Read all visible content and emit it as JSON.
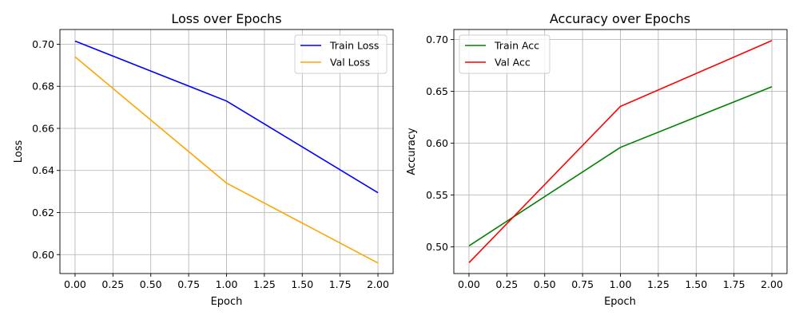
{
  "chart_data": [
    {
      "type": "line",
      "title": "Loss over Epochs",
      "xlabel": "Epoch",
      "ylabel": "Loss",
      "xlim": [
        -0.1,
        2.1
      ],
      "ylim": [
        0.591,
        0.707
      ],
      "xticks": [
        0.0,
        0.25,
        0.5,
        0.75,
        1.0,
        1.25,
        1.5,
        1.75,
        2.0
      ],
      "xtick_labels": [
        "0.00",
        "0.25",
        "0.50",
        "0.75",
        "1.00",
        "1.25",
        "1.50",
        "1.75",
        "2.00"
      ],
      "yticks": [
        0.6,
        0.62,
        0.64,
        0.66,
        0.68,
        0.7
      ],
      "ytick_labels": [
        "0.60",
        "0.62",
        "0.64",
        "0.66",
        "0.68",
        "0.70"
      ],
      "grid": true,
      "legend_position": "top-right",
      "x": [
        0,
        1,
        2
      ],
      "series": [
        {
          "name": "Train Loss",
          "color": "#0000ff",
          "values": [
            0.7015,
            0.673,
            0.6294
          ]
        },
        {
          "name": "Val Loss",
          "color": "#ffa500",
          "values": [
            0.694,
            0.634,
            0.596
          ]
        }
      ]
    },
    {
      "type": "line",
      "title": "Accuracy over Epochs",
      "xlabel": "Epoch",
      "ylabel": "Accuracy",
      "xlim": [
        -0.1,
        2.1
      ],
      "ylim": [
        0.4743,
        0.7097
      ],
      "xticks": [
        0.0,
        0.25,
        0.5,
        0.75,
        1.0,
        1.25,
        1.5,
        1.75,
        2.0
      ],
      "xtick_labels": [
        "0.00",
        "0.25",
        "0.50",
        "0.75",
        "1.00",
        "1.25",
        "1.50",
        "1.75",
        "2.00"
      ],
      "yticks": [
        0.5,
        0.55,
        0.6,
        0.65,
        0.7
      ],
      "ytick_labels": [
        "0.50",
        "0.55",
        "0.60",
        "0.65",
        "0.70"
      ],
      "grid": true,
      "legend_position": "top-left",
      "x": [
        0,
        1,
        2
      ],
      "series": [
        {
          "name": "Train Acc",
          "color": "#008000",
          "values": [
            0.501,
            0.596,
            0.6545
          ]
        },
        {
          "name": "Val Acc",
          "color": "#ff0000",
          "values": [
            0.4847,
            0.6355,
            0.699
          ]
        }
      ]
    }
  ]
}
